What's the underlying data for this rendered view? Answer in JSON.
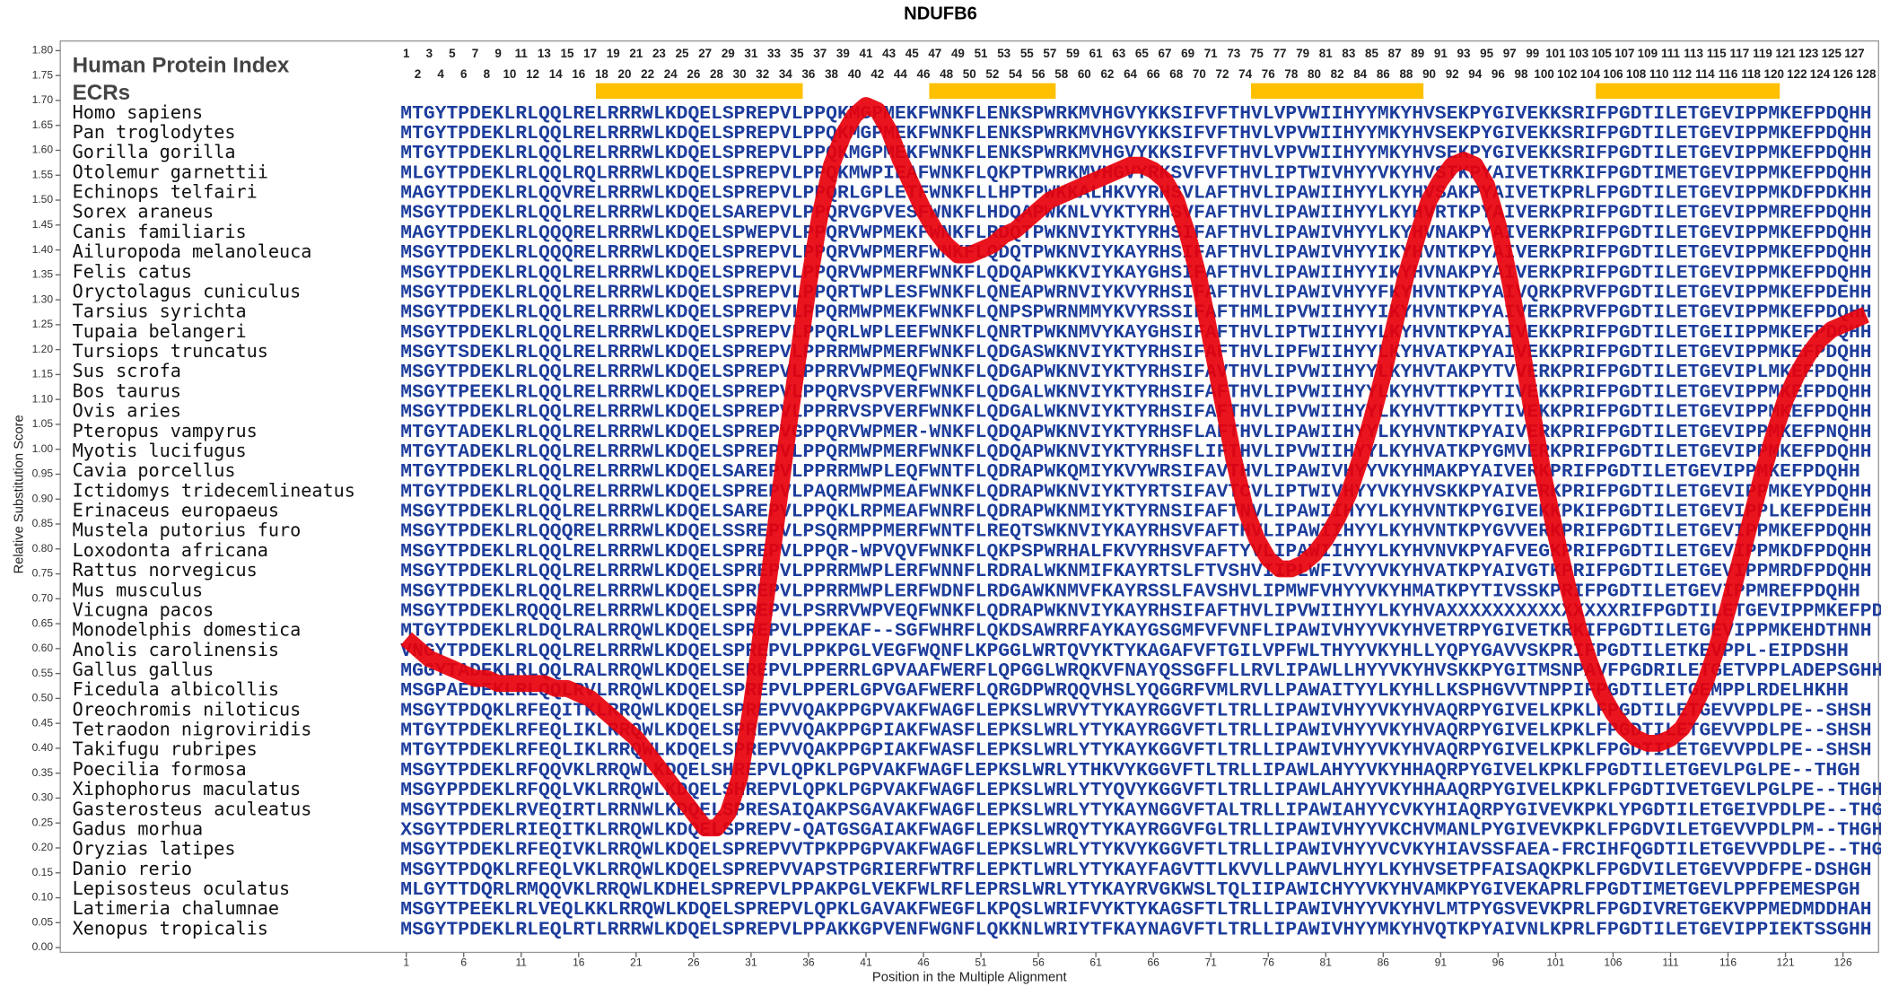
{
  "chart_data": {
    "type": "line",
    "title": "NDUFB6",
    "xlabel": "Position in the Multiple Alignment",
    "ylabel": "Relative Substitution Score",
    "index_label": "Human Protein Index",
    "ecr_label": "ECRs",
    "ecr_color": "#ffc000",
    "color": "#e8000b",
    "human_index": [
      1,
      2,
      3,
      4,
      5,
      6,
      7,
      8,
      9,
      10,
      11,
      12,
      13,
      14,
      15,
      16,
      17,
      18,
      19,
      20,
      21,
      22,
      23,
      24,
      25,
      26,
      27,
      28,
      29,
      30,
      31,
      32,
      33,
      34,
      35,
      36,
      37,
      38,
      39,
      40,
      41,
      42,
      43,
      44,
      45,
      46,
      47,
      48,
      49,
      50,
      51,
      52,
      53,
      54,
      55,
      56,
      57,
      58,
      59,
      60,
      61,
      62,
      63,
      64,
      65,
      66,
      67,
      68,
      69,
      70,
      71,
      72,
      73,
      74,
      75,
      76,
      77,
      78,
      79,
      80,
      81,
      82,
      83,
      84,
      85,
      86,
      87,
      88,
      89,
      90,
      91,
      92,
      93,
      94,
      95,
      96,
      97,
      98,
      99,
      100,
      101,
      102,
      103,
      104,
      105,
      106,
      107,
      108,
      109,
      110,
      111,
      112,
      113,
      114,
      115,
      116,
      117,
      118,
      119,
      120,
      121,
      122,
      123,
      124,
      125,
      126,
      127,
      128
    ],
    "ecrs": [
      [
        18,
        35
      ],
      [
        47,
        57
      ],
      [
        75,
        89
      ],
      [
        105,
        120
      ]
    ],
    "species": [
      "Homo sapiens",
      "Pan troglodytes",
      "Gorilla gorilla",
      "Otolemur garnettii",
      "Echinops telfairi",
      "Sorex araneus",
      "Canis familiaris",
      "Ailuropoda melanoleuca",
      "Felis catus",
      "Oryctolagus cuniculus",
      "Tarsius syrichta",
      "Tupaia belangeri",
      "Tursiops truncatus",
      "Sus scrofa",
      "Bos taurus",
      "Ovis aries",
      "Pteropus vampyrus",
      "Myotis lucifugus",
      "Cavia porcellus",
      "Ictidomys tridecemlineatus",
      "Erinaceus europaeus",
      "Mustela putorius furo",
      "Loxodonta africana",
      "Rattus norvegicus",
      "Mus musculus",
      "Vicugna pacos",
      "Monodelphis domestica",
      "Anolis carolinensis",
      "Gallus gallus",
      "Ficedula albicollis",
      "Oreochromis niloticus",
      "Tetraodon nigroviridis",
      "Takifugu rubripes",
      "Poecilia formosa",
      "Xiphophorus maculatus",
      "Gasterosteus aculeatus",
      "Gadus morhua",
      "Oryzias latipes",
      "Danio rerio",
      "Lepisosteus oculatus",
      "Latimeria chalumnae",
      "Xenopus tropicalis"
    ],
    "sequences": [
      "MTGYTPDEKLRLQQLRELRRRWLKDQELSPREPVLPPQKMGPMEKFWNKFLENKSPWRKMVHGVYKKSIFVFTHVLVPVWIIHYYMKYHVSEKPYGIVEKKSRIFPGDTILETGEVIPPMKEFPDQHH",
      "MTGYTPDEKLRLQQLRELRRRWLKDQELSPREPVLPPQKMGPMEKFWNKFLENKSPWRKMVHGVYKKSIFVFTHVLVPVWIIHYYMKYHVSEKPYGIVEKKSRIFPGDTILETGEVIPPMKEFPDQHH",
      "MTGYTPDEKLRLQQLRELRRRWLKDQELSPREPVLPPQKMGPMEKFWNKFLENKSPWRKMVHGVYKKSIFVFTHVLVPVWIIHYYMKYHVSEKPYGIVEKKSRIFPGDTILETGEVIPPMKEFPDQHH",
      "MLGYTPDEKLRLQQLRQLRRRWLKDQELSPREPVLPPQKMWPIEAFWNKFLQKPTPWRKMVHGVYRKSVFVFTHVLIPTWIVHYYVKYHVSTKPYAIVETKRKIFPGDTIMETGEVIPPMKEFPDQHH",
      "MAGYTPDEKLRLQQVRELRRRWLKDQELSPREPVLPPQRLGPLETFWNKFLLHPTPWKKALHKVYRHSVLAFTHVLIPAWIIHYYLKYHVSAKPYAIVETKPRLFPGDTILETGEVIPPMKDFPDKHH",
      "MSGYTPDEKLRLQQLRELRRRWLKDQELSAREPVLPPQRVGPVESFWNKFLHDQAPWKNLVYKTYRHSVFAFTHVLIPAWIIHYYLKYHVRTKPYAIVERKPRIFPGDTILETGEVIPPMREFPDQHH",
      "MAGYTPDEKLRLQQQRELRRRWLKDQELSPWEPVLPPQRVWPMEKFWNKFLRDQTPWKNVIYKTYRHSIFAFTHVLIPAWIVHYYLKYHVNAKPYAIVERKPRIFPGDTILETGEVIPPMKEFPDQHH",
      "MSGYTPDEKLRLQQQRELRRRWLKDQELSPREPVLPPQRVWPMERFWNKFLQDQTPWKNVIYKAYRHSIFAFTHVLIPAWIVHYYIKYHVNTKPYAIVERKPRIFPGDTILETGEVIPPMKEFPDQHH",
      "MSGYTPDEKLRLQQLRELRRRWLKDQELSPREPVLPPQRVWPMERFWNKFLQDQAPWKKVIYKAYGHSIFAFTHVLIPAWIIHYYIKYHVNAKPYAIVERKPRIFPGDTILETGEVIPPMKEFPDQHH",
      "MSGYTPDEKLRLQQLRELRRRWLKDQELSPREPVLPPQRTWPLESFWNKFLQNEAPWRNVIYKVYRHSIFAFTHVLIPAWIVHYYFKYHVNTKPYAIVQRKPRVFPGDTILETGEVIPPMKEFPDEHH",
      "MSGYTPDEKLRLQQLRELRRRWLKDQELSPREPVLPPQRMWPMEKFWNKFLQNPSPWRNMMYKVYRSSIFAFTHMLIPVWIIHYYIKYHVNTKPYAIVERKPRVFPGDTILETGEVIPPMKEFPDQHH",
      "MSGYTPDEKLRLQQLRELRRRWLKDQELSPREPVLPPQRLWPLEEFWNKFLQNRTPWKNMVYKAYGHSIFAFTHVLIPTWIIHYYLKYHVNTKPYAIVEKKPRIFPGDTILETGEIIPPMKEFPDQHH",
      "MSGYTSDEKLRLQQLRELRRRWLKDQELSPREPVLPPRRMWPMERFWNKFLQDGASWKNVIYKTYRHSIFAFTHVLIPFWIIHYYLKYHVATKPYAIVEKKPRIFPGDTILETGEVIPPMKEFPDQHH",
      "MSGYTPDEKLRLQQLRELRRRWLKDQELSPREPVLPPRRVWPMEQFWNKFLQDGAPWKNVIYKTYRHSIFAVTHVLIPVWIIHYYLKYHVTAKPYTVVERKPRIFPGDTILETGEVIPLMKEFPDQHH",
      "MSGYTPEEKLRLQQLRELRRRWLKDQELSPREPVLPPQRVSPVERFWNKFLQDGALWKNVIYKTYRHSIFAFTHVLIPVWIIHYYLKYHVTTKPYTIVEKKPRIFPGDTILETGEVIPPMKEFPDQHH",
      "MSGYTPDEKLRLQQLRELRRRWLKDQELSPREPVLPPRRVSPVERFWNKFLQDGALWKNVIYKTYRHSIFAFTHVLIPVWIIHYYLKYHVTTKPYTIVEKKPRIFPGDTILETGEVIPPMKEFPDQHH",
      "MTGYTADEKLRLQQLRELRRRWLKDQELSPREPVGPPQRVWPMER-WNKFLQDQAPWKNVIYKTYRHSFLAFTHVLIPAWIIHYYLKYHVNTKPYAIVERKPRIFPGDTILETGEVIPPMKEFPNQHH",
      "MTGYTADEKLRLQQLRELRRRWLKDQELSPREPVLPPQRMWPMERFWNKFLQDQAPWKNVIYKTYRHSFLIFTHVLIPVWIIHYYLKYHVATKPYGMVERKPRIFPGDTILETGEVIPPMKEFPDQHH",
      "MTGYTPDEKLRLQQLRELRRRWLKDQELSAREPVLPPRRMWPLEQFWNTFLQDRAPWKQMIYKVYWRSIFAVTHVLIPAWIVHYYVKYHMAKPYAIVERKPRIFPGDTILETGEVIPPMKEFPDQHH",
      "MTGYTPDEKLRLQQLRELRRRWLKDQELSPREPVLPAQRMWPMEAFWNKFLQDRAPWKNVIYKTYRTSIFAVTCVLIPTWIVHYYVKYHVSKKPYAIVERKPRIFPGDTILETGEVIPPMKEYPDQHH",
      "MSGYTPDEKLRLQQLRELRRRWLKDQELSAREPVLPPQKLRPMEAFWNRFLQDRAPWKNMIYKTYRNSIFAFTNVLIPAWIIHYYLKYHVNTKPYGIVEKKPKIFPGDTILETGEVIPPLKEFPDEHH",
      "MSGYTPDEKLRLQQQRELRRRWLKDQELSSREPVLPSQRMPPMERFWNTFLREQTSWKNVIYKAYRHSVFAFTHVLIPAWIIHYYLKYHVNTKPYGVVERKPRIFPGDTILETGEVIPPMKEFPDQHH",
      "MSGYTPDEKLRLQQLRELRRRWLKDQELSPREPVLPPQR-WPVQVFWNKFLQKPSPWRHALFKVYRHSVFAFTYVLIPAWIIHYYLKYHVNVKPYAFVEGKPRIFPGDTILETGEVIPPMKDFPDQHH",
      "MSGYTPDEKLRLQQLRELRRRWLKDQELSPREPVLPPRRMWPLERFWNNFLRDRALWKNMIFKAYRTSLFTVSHVIIPLWFIVYYVKYHVATKPYAIVGTKPRIFPGDTILETGEVIPPMRDFPDQHH",
      "MSGYTPDEKLRLQQLRELRRRWLKDQELSPREPVLPPRRMWPLERFWDNFLRDGAWKNMVFKAYRSSLFAVSHVLIPMWFVHYYVKYHMATKPYTIVSSKPRIFPGDTILETGEVIPPMREFPDQHH",
      "MSGYTPDEKLRQQQLRELRRRWLKDQELSPREPVLPSRRVWPVEQFWNKFLQDRAPWKNVIYKAYRHSIFAFTHVLIPVWIIHYYLKYHVAXXXXXXXXXXXXXXXRIFPGDTILETGEVIPPMKEFPDQHH",
      "MTGYTPDEKLRLDQLRALRRQWLKDQELSPREPVLPPEKAF--SGFWHRFLQKDSAWRRFAYKAYGSGMFVFVNFLIPAWIVHYYVKYHVETRPYGIVETKRKIFPGDTILETGEVIPPMKEHDTHNH",
      "VNGYTPDEKLRLQQLRELRRRWLKDQELSPREPVLPPKPGLVEGFWQNFLKPGGLWRTQVYKTYKAGAFVFTGILVPFWLTHYYVKYHLLYQPYGAVVSKPRIFPGDTILETKEVPPL-EIPDSHH",
      "MGGYTADEKLRLQQLRALRRQWLKDQELSEREPVLPPERRLGPVAAFWERFLQPGGLWRQKVFNAYQSSGFFLLRVLIPAWLLHYYVKYHVSKKPYGITMSNPAVFPGDRILETGETVPPLADEPSGHH",
      "MSGPAEDEKLRLQQLRVLRRQWLKDQELSPREPVLPPERLGPVGAFWERFLQRGDPWRQQVHSLYQGGRFVMLRVLLPAWAITYYLKYHLLKSPHGVVTNPPIFPGDTILETGEMPPLRDELHKHH",
      "MSGYTPDQKLRFEQITKLRRQWLKDQELSPREPVVQAKPPGPVAKFWAGFLEPKSLWRVYTYKAYRGGVFTLTRLLIPAWIVHYYVKYHVAQRPYGIVELKPKLFPGDTILETGEVVPDLPE--SHSH",
      "MTGYTPDEKLRFEQLIKLRRQWLKDQELSPREPVVQAKPPGPIAKFWASFLEPKSLWRLYTYKAYRGGVFTLTRLLIPAWIVHYYVKYHVAQRPYGIVELKPKLFPGDTILETGEVVPDLPE--SHSH",
      "MTGYTPDEKLRFEQLIKLRRQWLKDQELSPREPVVQAKPPGPIAKFWASFLEPKSLWRLYTYKAYKGGVFTLTRLLIPAWIVHYYVKYHVAQRPYGIVELKPKLFPGDTILETGEVVPDLPE--SHSH",
      "MSGYTPDEKLRFQQVKLRRQWLKDQELSHREPVLQPKLPGPVAKFWAGFLEPKSLWRLYTHKVYKGGVFTLTRLLIPAWLAHYYVKYHHAQRPYGIVELKPKLFPGDTILETGEVLPGLPE--THGH",
      "MSGYPPDEKLRFQQLVKLRRQWLKDQELSHREPVLQPKLPGPVAKFWAGFLEPKSLWRLYTYQVYKGGVFTLTRLLIPAWLAHYYVKYHHAAQRPYGIVELKPKLFPGDTIVETGEVLPGLPE--THGH",
      "MSGYTPDEKLRVEQIRTLRRNWLKDQELSPRESAIQAKPSGAVAKFWAGFLEPKSLWRLYTYKAYNGGVFTALTRLLIPAWIAHYYCVKYHIAQRPYGIVEVKPKLYPGDTILETGEIVPDLPE--THGH",
      "XSGYTPDERLRIEQITKLRRQWLKDQELSPREPV-QATGSGAIAKFWAGFLEPKSLWRQYTYKAYRGGVFGLTRLLIPAWIVHYYVKCHVMANLPYGIVEVKPKLFPGDVILETGEVVPDLPM--THGH",
      "MSGYTPDEKLRFEQIVKLRRQWLKDQELSPREPVVTPKPPGPVAKFWAGFLEPKSLWRLYTYKVYKGGVFTLTRLLIPAWIVHYYVCVKYHIAVSSFAEA-FRCIHFQGDTILETGEVVPDLPE--THGH",
      "MSGYTPDQKLRFEQLVKLRRQWLKDQELSPREPVVAPSTPGRIERFWTRFLEPKTLWRLYTYKAYFAGVTTLKVVLLPAWVLHYYLKYHVSETPFAISAQKPKLFPGDVILETGEVVPDFPE-DSHGH",
      "MLGYTTDQRLRMQQVKLRRQWLKDHELSPREPVLPPAKPGLVEKFWLRFLEPRSLWRLYTYKAYRVGKWSLTQLIIPAWICHYYVKYHVAMKPYGIVEKAPRLFPGDTIMETGEVLPPFPEMESPGH",
      "MSGYTPEEKLRLVEQLKKLRRQWLKDQELSPREPVLQPKLGAVAKFWEGFLKPQSLWRIFVYKTYKAGSFTLTRLLIPAWIVHYYVKYHVLMTPYGSVEVKPRLFPGDIVRETGEKVPPMEDMDDHAH",
      "MSGYTPDEKLRLEQLRTLRRRWLKDQELSPREPVLPPAKKGPVENFWGNFLQKKNLWRIYTFKAYNAGVFTLTRLLIPAWIVHYYMKYHVQTKPYAIVNLKPRLFPGDTILETGEVIPPIEKTSSGHH"
    ],
    "x": [
      1,
      2,
      3,
      4,
      5,
      6,
      7,
      8,
      9,
      10,
      11,
      12,
      13,
      14,
      15,
      16,
      17,
      18,
      19,
      20,
      21,
      22,
      23,
      24,
      25,
      26,
      27,
      28,
      29,
      30,
      31,
      32,
      33,
      34,
      35,
      36,
      37,
      38,
      39,
      40,
      41,
      42,
      43,
      44,
      45,
      46,
      47,
      48,
      49,
      50,
      51,
      52,
      53,
      54,
      55,
      56,
      57,
      58,
      59,
      60,
      61,
      62,
      63,
      64,
      65,
      66,
      67,
      68,
      69,
      70,
      71,
      72,
      73,
      74,
      75,
      76,
      77,
      78,
      79,
      80,
      81,
      82,
      83,
      84,
      85,
      86,
      87,
      88,
      89,
      90,
      91,
      92,
      93,
      94,
      95,
      96,
      97,
      98,
      99,
      100,
      101,
      102,
      103,
      104,
      105,
      106,
      107,
      108,
      109,
      110,
      111,
      112,
      113,
      114,
      115,
      116,
      117,
      118,
      119,
      120,
      121,
      122,
      123,
      124,
      125,
      126,
      127,
      128
    ],
    "values": [
      0.62,
      0.6,
      0.58,
      0.57,
      0.56,
      0.55,
      0.54,
      0.54,
      0.53,
      0.53,
      0.53,
      0.53,
      0.53,
      0.52,
      0.52,
      0.51,
      0.5,
      0.48,
      0.46,
      0.44,
      0.42,
      0.39,
      0.36,
      0.33,
      0.3,
      0.27,
      0.24,
      0.24,
      0.27,
      0.34,
      0.48,
      0.65,
      0.82,
      1.0,
      1.17,
      1.33,
      1.47,
      1.57,
      1.63,
      1.67,
      1.69,
      1.68,
      1.64,
      1.58,
      1.53,
      1.48,
      1.44,
      1.41,
      1.39,
      1.39,
      1.4,
      1.41,
      1.43,
      1.44,
      1.46,
      1.48,
      1.5,
      1.51,
      1.52,
      1.53,
      1.54,
      1.55,
      1.56,
      1.57,
      1.57,
      1.56,
      1.54,
      1.5,
      1.43,
      1.34,
      1.22,
      1.1,
      0.98,
      0.88,
      0.82,
      0.78,
      0.76,
      0.76,
      0.77,
      0.79,
      0.82,
      0.86,
      0.91,
      0.98,
      1.06,
      1.15,
      1.25,
      1.35,
      1.43,
      1.5,
      1.54,
      1.57,
      1.58,
      1.57,
      1.53,
      1.45,
      1.34,
      1.21,
      1.07,
      0.94,
      0.83,
      0.73,
      0.64,
      0.57,
      0.51,
      0.47,
      0.44,
      0.42,
      0.41,
      0.41,
      0.42,
      0.44,
      0.48,
      0.53,
      0.6,
      0.68,
      0.77,
      0.86,
      0.95,
      1.03,
      1.1,
      1.15,
      1.19,
      1.22,
      1.24,
      1.25,
      1.26,
      1.27
    ],
    "xlim": [
      -29.1,
      129.1
    ],
    "xticks": [
      1,
      6,
      11,
      16,
      21,
      26,
      31,
      36,
      41,
      46,
      51,
      56,
      61,
      66,
      71,
      76,
      81,
      86,
      91,
      96,
      101,
      106,
      111,
      116,
      121,
      126
    ],
    "ylim": [
      0,
      1.8
    ],
    "yticks": [
      {
        "value": 0,
        "label": "0.00"
      },
      {
        "value": 0.05,
        "label": "0.05"
      },
      {
        "value": 0.1,
        "label": "0.10"
      },
      {
        "value": 0.15,
        "label": "0.15"
      },
      {
        "value": 0.2,
        "label": "0.20"
      },
      {
        "value": 0.25,
        "label": "0.25"
      },
      {
        "value": 0.3,
        "label": "0.30"
      },
      {
        "value": 0.35,
        "label": "0.35"
      },
      {
        "value": 0.4,
        "label": "0.40"
      },
      {
        "value": 0.45,
        "label": "0.45"
      },
      {
        "value": 0.5,
        "label": "0.50"
      },
      {
        "value": 0.55,
        "label": "0.55"
      },
      {
        "value": 0.6,
        "label": "0.60"
      },
      {
        "value": 0.65,
        "label": "0.65"
      },
      {
        "value": 0.7,
        "label": "0.70"
      },
      {
        "value": 0.75,
        "label": "0.75"
      },
      {
        "value": 0.8,
        "label": "0.80"
      },
      {
        "value": 0.85,
        "label": "0.85"
      },
      {
        "value": 0.9,
        "label": "0.90"
      },
      {
        "value": 0.95,
        "label": "0.95"
      },
      {
        "value": 1,
        "label": "1.00"
      },
      {
        "value": 1.05,
        "label": "1.05"
      },
      {
        "value": 1.1,
        "label": "1.10"
      },
      {
        "value": 1.15,
        "label": "1.15"
      },
      {
        "value": 1.2,
        "label": "1.20"
      },
      {
        "value": 1.25,
        "label": "1.25"
      },
      {
        "value": 1.3,
        "label": "1.30"
      },
      {
        "value": 1.35,
        "label": "1.35"
      },
      {
        "value": 1.4,
        "label": "1.40"
      },
      {
        "value": 1.45,
        "label": "1.45"
      },
      {
        "value": 1.5,
        "label": "1.50"
      },
      {
        "value": 1.55,
        "label": "1.55"
      },
      {
        "value": 1.6,
        "label": "1.60"
      },
      {
        "value": 1.65,
        "label": "1.65"
      },
      {
        "value": 1.7,
        "label": "1.70"
      },
      {
        "value": 1.75,
        "label": "1.75"
      },
      {
        "value": 1.8,
        "label": "1.80"
      }
    ]
  }
}
